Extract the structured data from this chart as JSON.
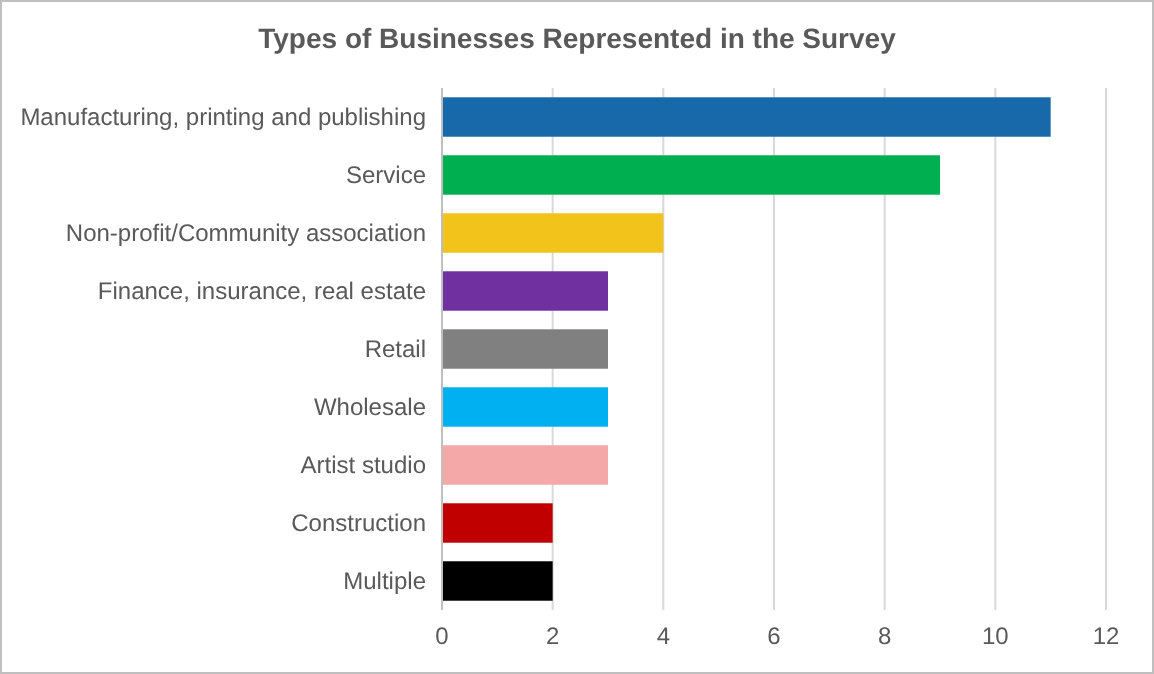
{
  "chart_data": {
    "type": "bar",
    "orientation": "horizontal",
    "title": "Types of Businesses Represented in the Survey",
    "categories": [
      "Manufacturing, printing and publishing",
      "Service",
      "Non-profit/Community association",
      "Finance, insurance, real estate",
      "Retail",
      "Wholesale",
      "Artist studio",
      "Construction",
      "Multiple"
    ],
    "values": [
      11,
      9,
      4,
      3,
      3,
      3,
      3,
      2,
      2
    ],
    "colors": [
      "#1769aa",
      "#00b050",
      "#f2c31b",
      "#7030a0",
      "#808080",
      "#00b0f0",
      "#f4a8a8",
      "#c00000",
      "#000000"
    ],
    "xlim": [
      0,
      12
    ],
    "xticks": [
      0,
      2,
      4,
      6,
      8,
      10,
      12
    ],
    "grid": "x"
  }
}
